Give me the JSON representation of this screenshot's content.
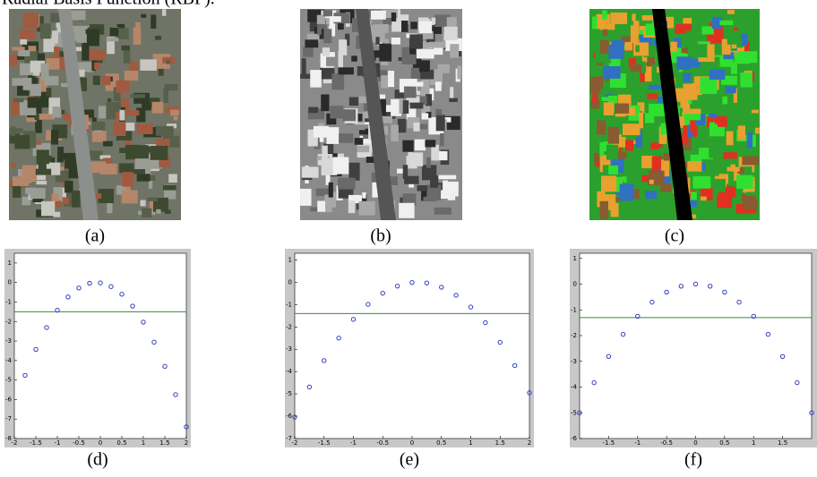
{
  "header": {
    "text": "Radial Basis Function (RBF)."
  },
  "images": [
    {
      "caption": "(a)"
    },
    {
      "caption": "(b)"
    },
    {
      "caption": "(c)"
    }
  ],
  "plots": [
    {
      "caption": "(d)",
      "xlim": [
        -2,
        2
      ],
      "ylim": [
        -8,
        1.5
      ],
      "xticks": [
        -2,
        -1.5,
        -1,
        -0.5,
        0,
        0.5,
        1,
        1.5,
        2
      ],
      "yticks": [
        1,
        0,
        -1,
        -2,
        -3,
        -4,
        -5,
        -6,
        -7,
        -8
      ],
      "threshold": -1.5,
      "line_color": "#3a8a3a",
      "point_color": "#3040c0",
      "x": [
        -1.75,
        -1.5,
        -1.25,
        -1,
        -0.75,
        -0.5,
        -0.25,
        0,
        0.25,
        0.5,
        0.75,
        1,
        1.25,
        1.5,
        1.75,
        2
      ],
      "y": [
        -4.76,
        -3.43,
        -2.31,
        -1.42,
        -0.74,
        -0.28,
        -0.04,
        -0.02,
        -0.21,
        -0.6,
        -1.21,
        -2.03,
        -3.06,
        -4.3,
        -5.75,
        -7.4
      ]
    },
    {
      "caption": "(e)",
      "xlim": [
        -2,
        2
      ],
      "ylim": [
        -7,
        1.3
      ],
      "xticks": [
        -2,
        -1.5,
        -1,
        -0.5,
        0,
        0.5,
        1,
        1.5,
        2
      ],
      "yticks": [
        1,
        0,
        -1,
        -2,
        -3,
        -4,
        -5,
        -6,
        -7
      ],
      "threshold": -1.4,
      "line_color": "#3a8a3a",
      "point_color": "#3040c0",
      "x": [
        -2,
        -1.75,
        -1.5,
        -1.25,
        -1,
        -0.75,
        -0.5,
        -0.25,
        0,
        0.25,
        0.5,
        0.75,
        1,
        1.25,
        1.5,
        1.75,
        2
      ],
      "y": [
        -6.04,
        -4.69,
        -3.51,
        -2.5,
        -1.66,
        -0.99,
        -0.49,
        -0.17,
        -0.01,
        -0.03,
        -0.22,
        -0.58,
        -1.11,
        -1.81,
        -2.69,
        -3.73,
        -4.95
      ]
    },
    {
      "caption": "(f)",
      "xlim": [
        -2,
        2
      ],
      "ylim": [
        -6,
        1.2
      ],
      "xticks": [
        -1.5,
        -1,
        -0.5,
        0,
        0.5,
        1,
        1.5
      ],
      "yticks": [
        1,
        0,
        -1,
        -2,
        -3,
        -4,
        -5,
        -6
      ],
      "threshold": -1.3,
      "line_color": "#3a8a3a",
      "point_color": "#3040c0",
      "x": [
        -2,
        -1.75,
        -1.5,
        -1.25,
        -1,
        -0.75,
        -0.5,
        -0.25,
        0,
        0.25,
        0.5,
        0.75,
        1,
        1.25,
        1.5,
        1.75,
        2
      ],
      "y": [
        -5,
        -3.83,
        -2.81,
        -1.95,
        -1.25,
        -0.7,
        -0.31,
        -0.08,
        0,
        -0.08,
        -0.31,
        -0.7,
        -1.25,
        -1.95,
        -2.81,
        -3.83,
        -5
      ]
    }
  ]
}
